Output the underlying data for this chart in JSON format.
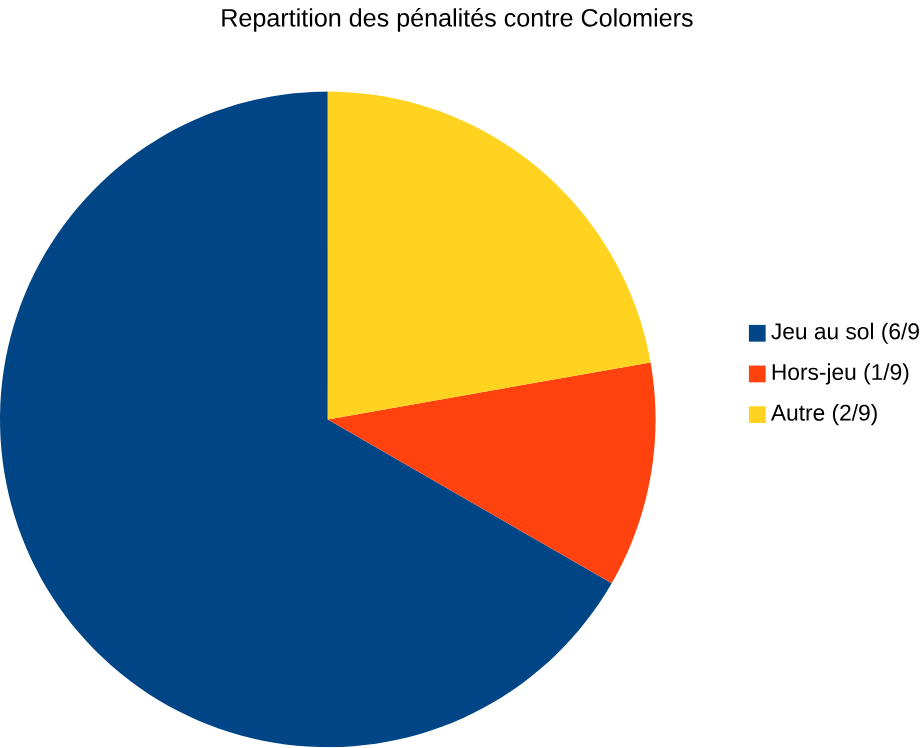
{
  "chart_data": {
    "type": "pie",
    "title": "Repartition des pénalités contre Colomiers",
    "categories": [
      "Jeu au sol (6/9",
      "Hors-jeu (1/9)",
      "Autre (2/9)"
    ],
    "values": [
      66.67,
      11.11,
      22.22
    ],
    "colors": [
      "#004586",
      "#ff420e",
      "#ffd320"
    ],
    "legend": "right"
  }
}
